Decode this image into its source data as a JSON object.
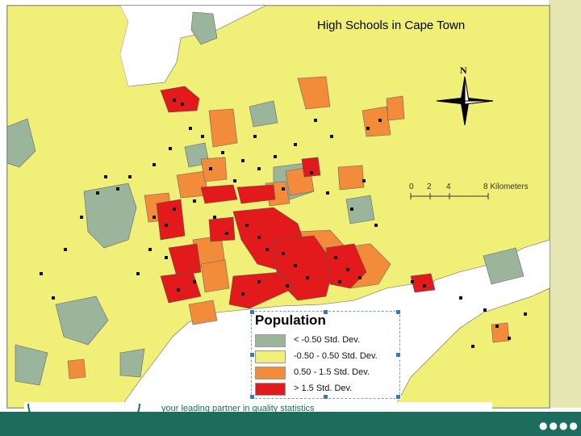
{
  "map": {
    "title": "High Schools in Cape Town",
    "north_label": "N",
    "scale_bar": {
      "ticks": [
        "0",
        "2",
        "4",
        "8 Kilometers"
      ]
    }
  },
  "legend": {
    "title": "Population",
    "classes": [
      {
        "label": "< -0.50 Std. Dev.",
        "color": "#9bb59c"
      },
      {
        "label": "-0.50 - 0.50 Std. Dev.",
        "color": "#f0ef78"
      },
      {
        "label": "0.50 - 1.5 Std. Dev.",
        "color": "#f28c3a"
      },
      {
        "label": "> 1.5 Std. Dev.",
        "color": "#e31a1c"
      }
    ]
  },
  "colors": {
    "sea": "#ffffff",
    "land_default": "#f0ef78",
    "school_marker": "#111111",
    "footer": "#1c6d5e"
  },
  "footer": {
    "tagline": "your leading partner in quality statistics"
  }
}
